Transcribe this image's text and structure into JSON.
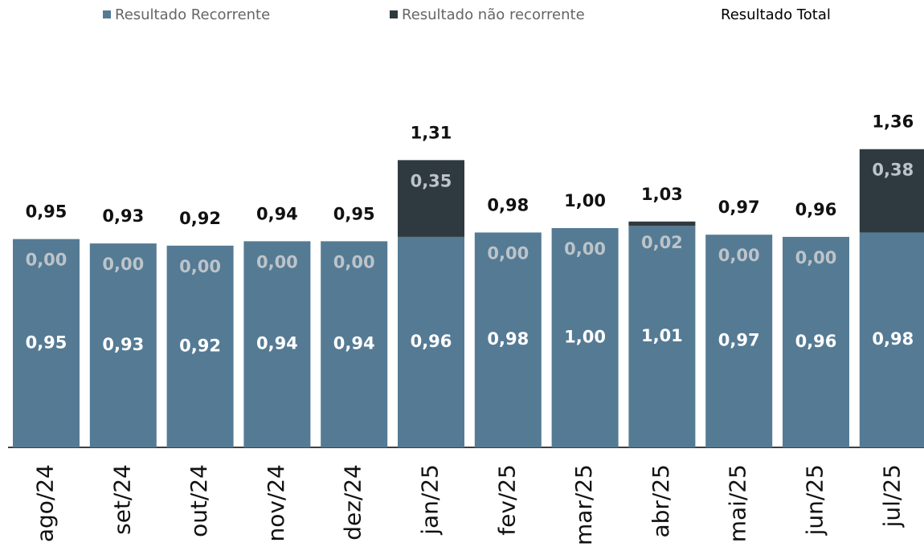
{
  "chart_data": {
    "type": "stacked_bar",
    "categories": [
      "ago/24",
      "set/24",
      "out/24",
      "nov/24",
      "dez/24",
      "jan/25",
      "fev/25",
      "mar/25",
      "abr/25",
      "mai/25",
      "jun/25",
      "jul/25"
    ],
    "series": [
      {
        "name": "Resultado Recorrente",
        "color": "#557a94",
        "values": [
          0.95,
          0.93,
          0.92,
          0.94,
          0.94,
          0.96,
          0.98,
          1.0,
          1.01,
          0.97,
          0.96,
          0.98
        ],
        "value_labels": [
          "0,95",
          "0,93",
          "0,92",
          "0,94",
          "0,94",
          "0,96",
          "0,98",
          "1,00",
          "1,01",
          "0,97",
          "0,96",
          "0,98"
        ]
      },
      {
        "name": "Resultado não recorrente",
        "color": "#2f3a40",
        "values": [
          0,
          0,
          0,
          0,
          0,
          0.35,
          0,
          0,
          0.02,
          0,
          0,
          0.38
        ],
        "value_labels": [
          "0,00",
          "0,00",
          "0,00",
          "0,00",
          "0,00",
          "0,35",
          "0,00",
          "0,00",
          "0,02",
          "0,00",
          "0,00",
          "0,38"
        ]
      }
    ],
    "totals": {
      "name": "Resultado Total",
      "values": [
        0.95,
        0.93,
        0.92,
        0.94,
        0.95,
        1.31,
        0.98,
        1.0,
        1.03,
        0.97,
        0.96,
        1.36
      ],
      "value_labels": [
        "0,95",
        "0,93",
        "0,92",
        "0,94",
        "0,95",
        "1,31",
        "0,98",
        "1,00",
        "1,03",
        "0,97",
        "0,96",
        "1,36"
      ]
    },
    "ylim": [
      0,
      2
    ]
  }
}
